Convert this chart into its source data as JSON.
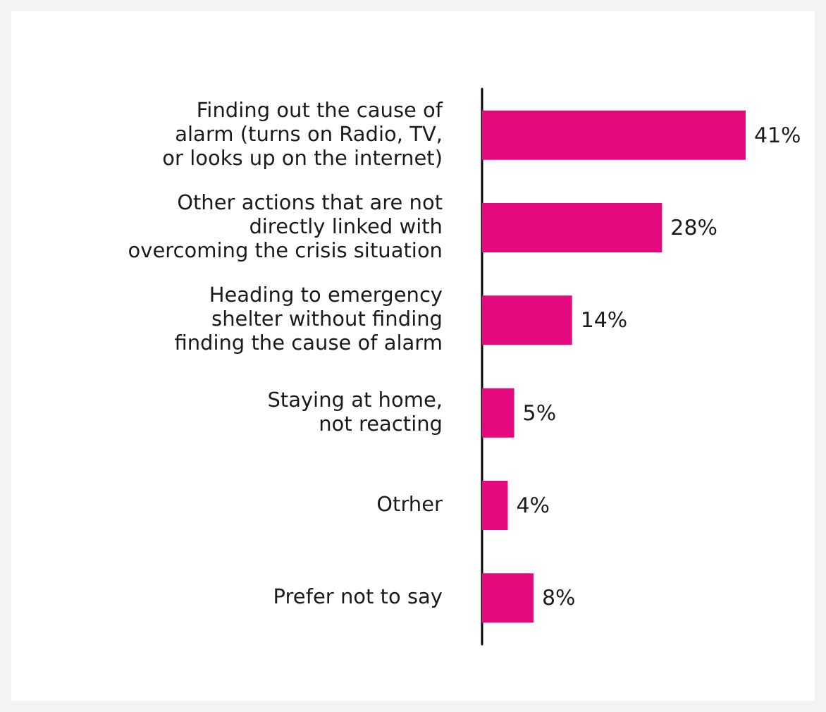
{
  "chart_data": {
    "type": "bar",
    "orientation": "horizontal",
    "categories": [
      "Finding out the cause of\nalarm (turns on Radio, TV,\nor looks up on the internet)",
      "Other actions that are not\ndirectly linked with\novercoming the crisis situation",
      "Heading to emergency\nshelter without finding\nfinding the cause of alarm",
      "Staying at home,\nnot reacting",
      "Otrher",
      "Prefer not to say"
    ],
    "values": [
      41,
      28,
      14,
      5,
      4,
      8
    ],
    "value_labels": [
      "41%",
      "28%",
      "14%",
      "5%",
      "4%",
      "8%"
    ],
    "color": "#e4097f",
    "grid": false
  }
}
